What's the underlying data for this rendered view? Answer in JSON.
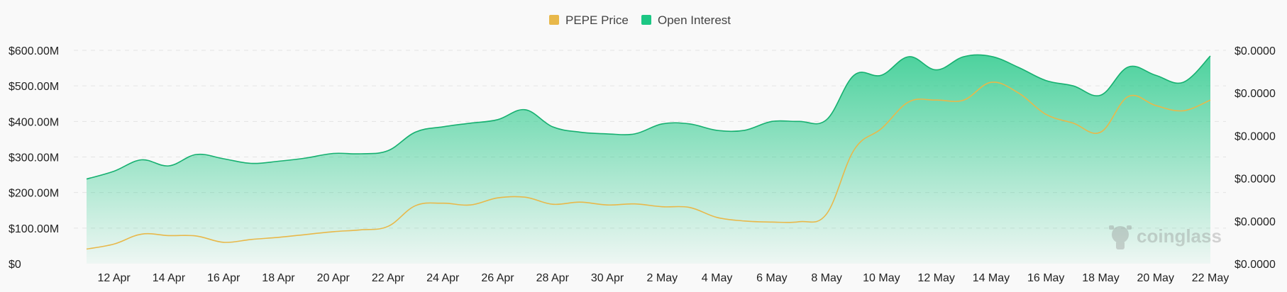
{
  "chart_data": {
    "type": "area",
    "title": "",
    "legend": {
      "position": "top-center",
      "items": [
        {
          "label": "PEPE Price",
          "color": "#e8b84a"
        },
        {
          "label": "Open Interest",
          "color": "#1cc784"
        }
      ]
    },
    "watermark": "coinglass",
    "grid": true,
    "x_ticks": [
      "12 Apr",
      "14 Apr",
      "16 Apr",
      "18 Apr",
      "20 Apr",
      "22 Apr",
      "24 Apr",
      "26 Apr",
      "28 Apr",
      "30 Apr",
      "2 May",
      "4 May",
      "6 May",
      "8 May",
      "10 May",
      "12 May",
      "14 May",
      "16 May",
      "18 May",
      "20 May",
      "22 May"
    ],
    "y_left": {
      "label": "",
      "ylim": [
        0,
        600
      ],
      "ticks": [
        "$0",
        "$100.00M",
        "$200.00M",
        "$300.00M",
        "$400.00M",
        "$500.00M",
        "$600.00M"
      ]
    },
    "y_right": {
      "label": "",
      "ticks": [
        "$0.0000",
        "$0.0000",
        "$0.0000",
        "$0.0000",
        "$0.0000",
        "$0.0000"
      ]
    },
    "x": [
      "11 Apr",
      "12 Apr",
      "13 Apr",
      "14 Apr",
      "15 Apr",
      "16 Apr",
      "17 Apr",
      "18 Apr",
      "19 Apr",
      "20 Apr",
      "21 Apr",
      "22 Apr",
      "23 Apr",
      "24 Apr",
      "25 Apr",
      "26 Apr",
      "27 Apr",
      "28 Apr",
      "29 Apr",
      "30 Apr",
      "1 May",
      "2 May",
      "3 May",
      "4 May",
      "5 May",
      "6 May",
      "7 May",
      "8 May",
      "9 May",
      "10 May",
      "11 May",
      "12 May",
      "13 May",
      "14 May",
      "15 May",
      "16 May",
      "17 May",
      "18 May",
      "19 May",
      "20 May",
      "21 May",
      "22 May"
    ],
    "series": [
      {
        "name": "Open Interest",
        "color": "#1cc784",
        "unit": "$M",
        "values": [
          238,
          260,
          292,
          275,
          307,
          295,
          282,
          288,
          297,
          310,
          309,
          318,
          370,
          385,
          395,
          405,
          433,
          385,
          370,
          365,
          365,
          393,
          393,
          375,
          375,
          400,
          400,
          405,
          530,
          530,
          582,
          545,
          582,
          583,
          552,
          515,
          500,
          474,
          553,
          530,
          510,
          584
        ]
      },
      {
        "name": "PEPE Price",
        "color": "#e8b84a",
        "unit": "relative (right-axis scale, tick labels read $0.0000)",
        "values": [
          41,
          55,
          83,
          79,
          78,
          60,
          68,
          74,
          82,
          90,
          95,
          105,
          163,
          170,
          165,
          185,
          187,
          167,
          173,
          165,
          168,
          160,
          158,
          130,
          120,
          117,
          118,
          140,
          320,
          380,
          455,
          460,
          460,
          510,
          480,
          420,
          395,
          370,
          470,
          445,
          430,
          460
        ]
      }
    ]
  }
}
